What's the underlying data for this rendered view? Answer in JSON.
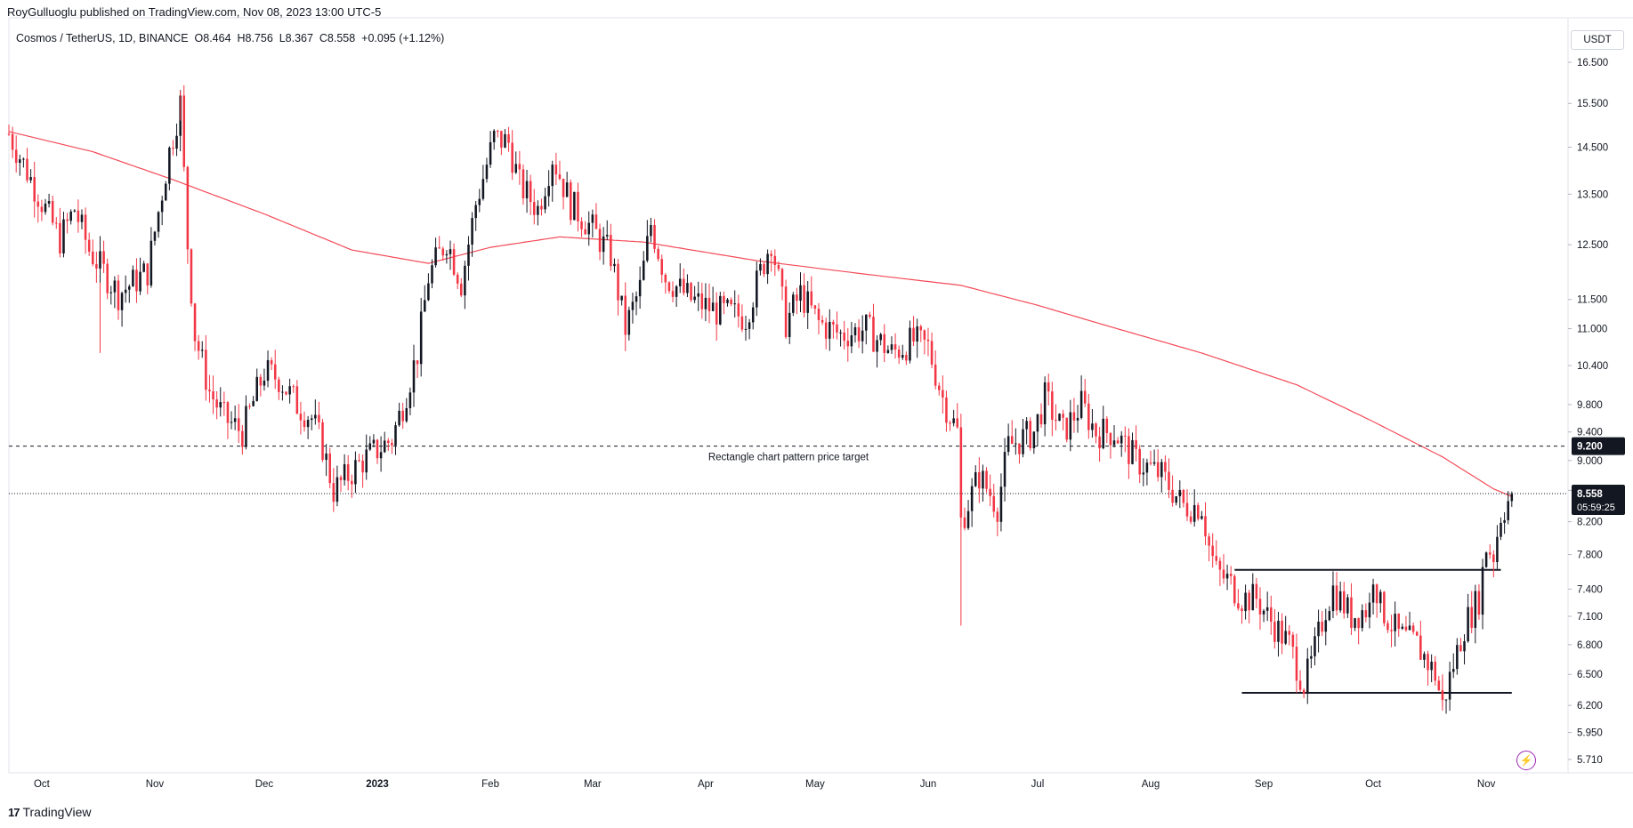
{
  "publisher": "RoyGulluoglu published on TradingView.com, Nov 08, 2023 13:00 UTC-5",
  "symbol_line": "Cosmos / TetherUS, 1D, BINANCE  O8.464  H8.756  L8.367  C8.558  +0.095 (+1.12%)",
  "currency": "USDT",
  "footer": {
    "logo_mark": "17",
    "logo_text": "TradingView"
  },
  "colors": {
    "up": "#131722",
    "down": "#f23645",
    "ma": "#f23645",
    "price_label": "#131722",
    "target_label": "#131722",
    "bolt": "#9c27b0"
  },
  "icons": {
    "bolt": "bolt-icon",
    "logo": "tradingview-logo-icon"
  },
  "chart_data": {
    "type": "candlestick",
    "title": "Cosmos / TetherUS, 1D, BINANCE",
    "y_axis": {
      "scale": "log",
      "range": [
        5.61,
        17.0
      ],
      "ticks": [
        "16.500",
        "15.500",
        "14.500",
        "13.500",
        "12.500",
        "11.500",
        "11.000",
        "10.400",
        "9.800",
        "9.400",
        "9.000",
        "8.600",
        "8.200",
        "7.800",
        "7.400",
        "7.100",
        "6.800",
        "6.500",
        "6.200",
        "5.950",
        "5.710"
      ]
    },
    "x_axis": {
      "start": "2022-09-22",
      "end": "2023-11-08",
      "range_end": "2023-11-20",
      "labels": [
        {
          "text": "Oct",
          "date": "2022-10-01"
        },
        {
          "text": "Nov",
          "date": "2022-11-01"
        },
        {
          "text": "Dec",
          "date": "2022-12-01"
        },
        {
          "text": "2023",
          "date": "2023-01-01"
        },
        {
          "text": "Feb",
          "date": "2023-02-01"
        },
        {
          "text": "Mar",
          "date": "2023-03-01"
        },
        {
          "text": "Apr",
          "date": "2023-04-01"
        },
        {
          "text": "May",
          "date": "2023-05-01"
        },
        {
          "text": "Jun",
          "date": "2023-06-01"
        },
        {
          "text": "Jul",
          "date": "2023-07-01"
        },
        {
          "text": "Aug",
          "date": "2023-08-01"
        },
        {
          "text": "Sep",
          "date": "2023-09-01"
        },
        {
          "text": "Oct",
          "date": "2023-10-01"
        },
        {
          "text": "Nov",
          "date": "2023-11-01"
        }
      ]
    },
    "ohlc_key": [
      [
        "2022-09-22",
        14.8
      ],
      [
        "2022-09-30",
        13.5
      ],
      [
        "2022-10-06",
        12.6
      ],
      [
        "2022-10-10",
        13.2
      ],
      [
        "2022-10-14",
        12.4
      ],
      [
        "2022-10-22",
        11.6
      ],
      [
        "2022-10-30",
        12.0
      ],
      [
        "2022-11-05",
        14.4
      ],
      [
        "2022-11-08",
        15.5
      ],
      [
        "2022-11-10",
        12.5
      ],
      [
        "2022-11-12",
        10.9
      ],
      [
        "2022-11-16",
        10.0
      ],
      [
        "2022-11-20",
        9.6
      ],
      [
        "2022-11-25",
        9.4
      ],
      [
        "2022-12-01",
        10.3
      ],
      [
        "2022-12-05",
        10.2
      ],
      [
        "2022-12-10",
        9.8
      ],
      [
        "2022-12-14",
        9.6
      ],
      [
        "2022-12-17",
        9.2
      ],
      [
        "2022-12-20",
        8.6
      ],
      [
        "2022-12-28",
        9.0
      ],
      [
        "2023-01-05",
        9.3
      ],
      [
        "2023-01-08",
        9.8
      ],
      [
        "2023-01-12",
        10.6
      ],
      [
        "2023-01-15",
        11.9
      ],
      [
        "2023-01-20",
        12.6
      ],
      [
        "2023-01-24",
        11.8
      ],
      [
        "2023-01-28",
        13.3
      ],
      [
        "2023-02-02",
        14.7
      ],
      [
        "2023-02-06",
        14.6
      ],
      [
        "2023-02-09",
        13.7
      ],
      [
        "2023-02-14",
        13.2
      ],
      [
        "2023-02-18",
        14.3
      ],
      [
        "2023-02-23",
        13.3
      ],
      [
        "2023-03-01",
        12.8
      ],
      [
        "2023-03-06",
        12.3
      ],
      [
        "2023-03-10",
        11.0
      ],
      [
        "2023-03-14",
        11.7
      ],
      [
        "2023-03-17",
        12.9
      ],
      [
        "2023-03-21",
        11.9
      ],
      [
        "2023-03-28",
        11.5
      ],
      [
        "2023-04-04",
        11.3
      ],
      [
        "2023-04-12",
        11.2
      ],
      [
        "2023-04-19",
        12.6
      ],
      [
        "2023-04-23",
        11.1
      ],
      [
        "2023-04-27",
        11.6
      ],
      [
        "2023-05-02",
        11.1
      ],
      [
        "2023-05-08",
        10.9
      ],
      [
        "2023-05-15",
        11.0
      ],
      [
        "2023-05-22",
        10.6
      ],
      [
        "2023-05-28",
        10.8
      ],
      [
        "2023-06-01",
        10.7
      ],
      [
        "2023-06-05",
        9.9
      ],
      [
        "2023-06-09",
        9.4
      ],
      [
        "2023-06-10",
        8.2
      ],
      [
        "2023-06-15",
        8.8
      ],
      [
        "2023-06-20",
        8.4
      ],
      [
        "2023-06-23",
        9.2
      ],
      [
        "2023-06-30",
        9.4
      ],
      [
        "2023-07-03",
        9.9
      ],
      [
        "2023-07-08",
        9.4
      ],
      [
        "2023-07-13",
        9.8
      ],
      [
        "2023-07-17",
        9.4
      ],
      [
        "2023-07-22",
        9.4
      ],
      [
        "2023-07-28",
        9.0
      ],
      [
        "2023-08-04",
        8.8
      ],
      [
        "2023-08-10",
        8.4
      ],
      [
        "2023-08-15",
        8.4
      ],
      [
        "2023-08-17",
        7.9
      ],
      [
        "2023-08-19",
        7.6
      ],
      [
        "2023-08-22",
        7.5
      ],
      [
        "2023-08-26",
        7.3
      ],
      [
        "2023-08-30",
        7.3
      ],
      [
        "2023-09-02",
        7.1
      ],
      [
        "2023-09-08",
        6.8
      ],
      [
        "2023-09-12",
        6.4
      ],
      [
        "2023-09-14",
        6.6
      ],
      [
        "2023-09-18",
        7.2
      ],
      [
        "2023-09-20",
        7.4
      ],
      [
        "2023-09-25",
        7.1
      ],
      [
        "2023-09-30",
        7.2
      ],
      [
        "2023-10-01",
        7.6
      ],
      [
        "2023-10-03",
        7.2
      ],
      [
        "2023-10-08",
        6.9
      ],
      [
        "2023-10-13",
        6.8
      ],
      [
        "2023-10-18",
        6.5
      ],
      [
        "2023-10-20",
        6.2
      ],
      [
        "2023-10-23",
        6.6
      ],
      [
        "2023-10-26",
        7.0
      ],
      [
        "2023-10-30",
        7.3
      ],
      [
        "2023-11-01",
        7.9
      ],
      [
        "2023-11-03",
        7.8
      ],
      [
        "2023-11-05",
        8.3
      ],
      [
        "2023-11-07",
        8.46
      ],
      [
        "2023-11-08",
        8.558
      ]
    ],
    "ma_key": [
      [
        "2022-09-22",
        14.85
      ],
      [
        "2022-10-15",
        14.4
      ],
      [
        "2022-11-06",
        13.8
      ],
      [
        "2022-12-01",
        13.1
      ],
      [
        "2022-12-25",
        12.4
      ],
      [
        "2023-01-15",
        12.15
      ],
      [
        "2023-02-01",
        12.45
      ],
      [
        "2023-02-20",
        12.65
      ],
      [
        "2023-03-15",
        12.55
      ],
      [
        "2023-04-15",
        12.2
      ],
      [
        "2023-05-15",
        11.95
      ],
      [
        "2023-06-10",
        11.75
      ],
      [
        "2023-07-01",
        11.4
      ],
      [
        "2023-07-20",
        11.05
      ],
      [
        "2023-08-15",
        10.6
      ],
      [
        "2023-09-10",
        10.1
      ],
      [
        "2023-10-01",
        9.55
      ],
      [
        "2023-10-20",
        9.05
      ],
      [
        "2023-11-03",
        8.62
      ],
      [
        "2023-11-08",
        8.52
      ]
    ],
    "lines": [
      {
        "name": "price-target",
        "value": 9.2,
        "style": "dashed",
        "label": "Rectangle chart pattern price target"
      },
      {
        "name": "resistance",
        "value": 7.62,
        "from": "2023-08-24",
        "to": "2023-11-05",
        "style": "solid"
      },
      {
        "name": "support",
        "value": 6.32,
        "from": "2023-08-26",
        "to": "2023-11-08",
        "style": "solid"
      },
      {
        "name": "last-price",
        "value": 8.558,
        "style": "dotted"
      }
    ],
    "price_labels": {
      "target": "9.200",
      "last": "8.558",
      "countdown": "05:59:25"
    },
    "annotation": "Rectangle chart pattern price target",
    "grid": false,
    "legend": "none"
  }
}
